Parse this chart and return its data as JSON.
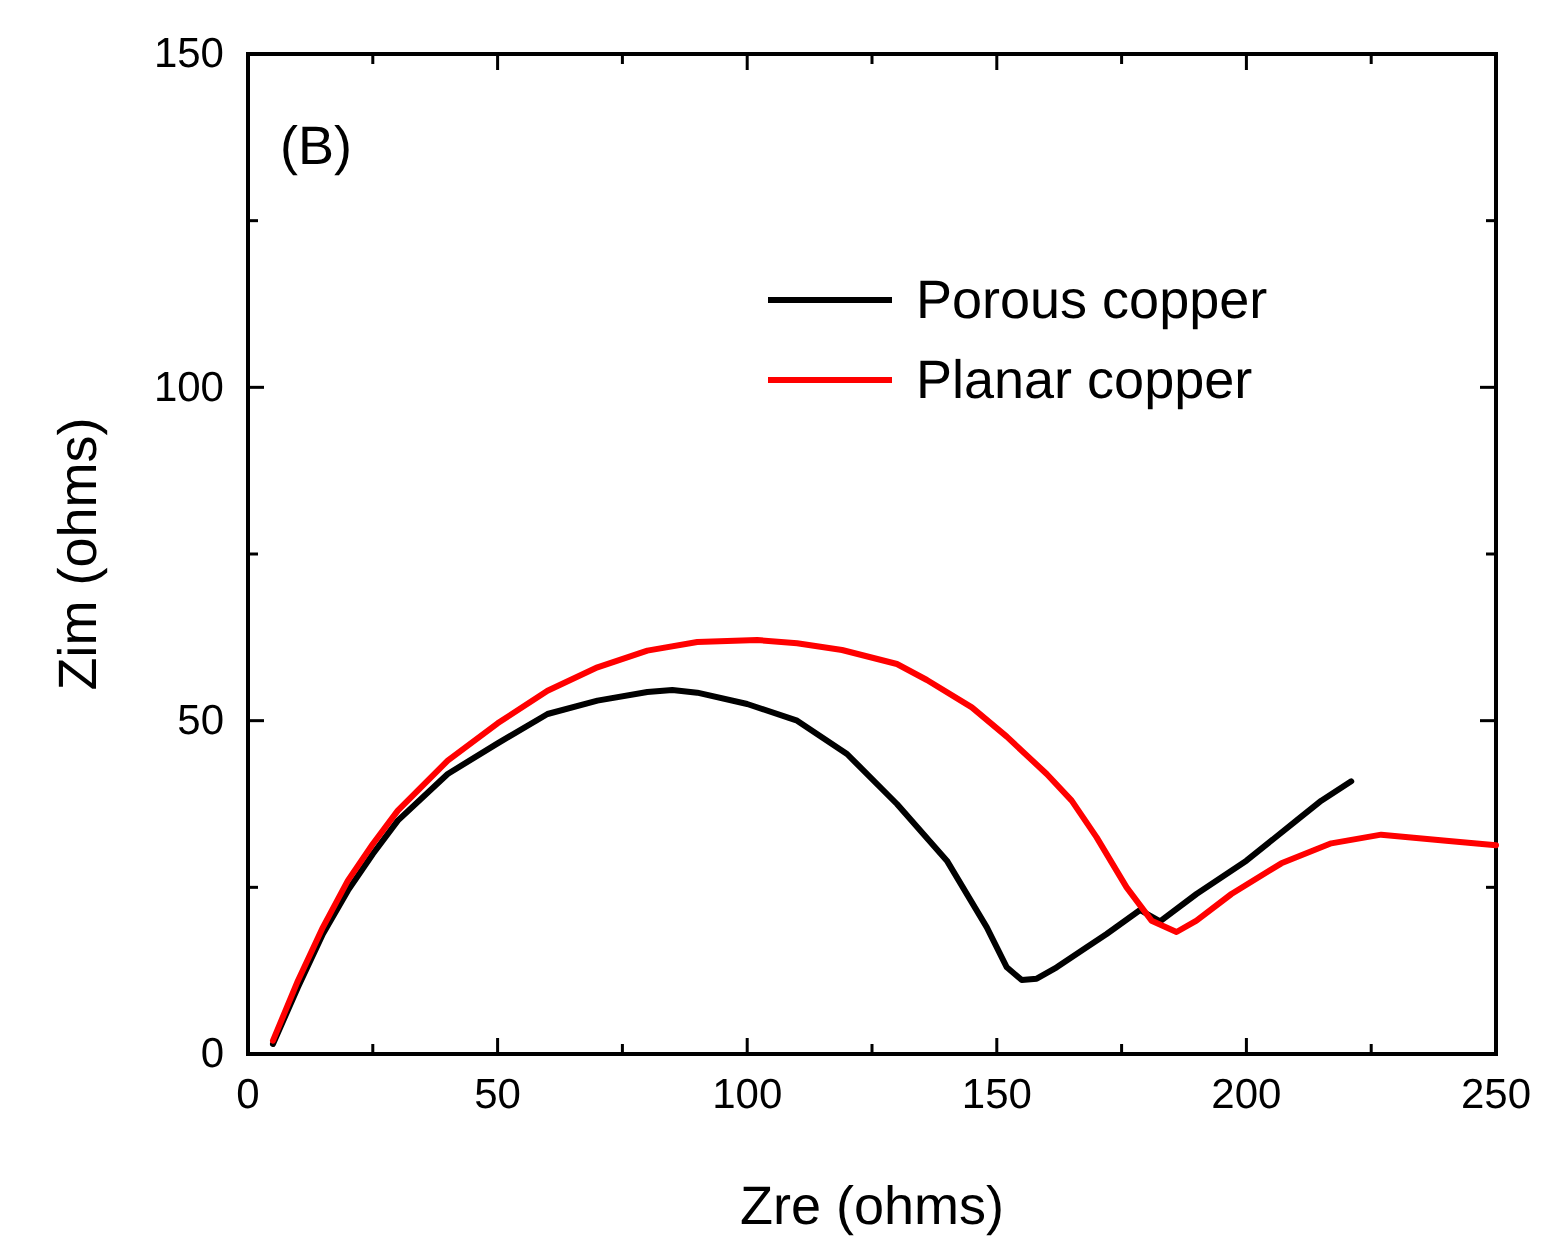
{
  "chart_data": {
    "type": "line",
    "xlabel": "Zre (ohms)",
    "ylabel": "Zim (ohms)",
    "annotations": [
      "(B)"
    ],
    "xlim": [
      0,
      250
    ],
    "ylim": [
      0,
      150
    ],
    "xticks": [
      0,
      {
        "value": 25,
        "label": null
      },
      50,
      {
        "value": 75,
        "label": null
      },
      100,
      {
        "value": 125,
        "label": null
      },
      150,
      {
        "value": 175,
        "label": null
      },
      200,
      {
        "value": 225,
        "label": null
      },
      250
    ],
    "yticks": [
      0,
      {
        "value": 25,
        "label": null
      },
      50,
      {
        "value": 75,
        "label": null
      },
      100,
      {
        "value": 125,
        "label": null
      },
      150
    ],
    "legend": "top right",
    "grid": false,
    "marker": "none",
    "line_style": "solid",
    "series": [
      {
        "name": "Porous copper",
        "color": "#000000",
        "x": [
          5,
          10,
          15,
          20,
          25,
          30,
          40,
          50,
          60,
          70,
          80,
          85,
          90,
          100,
          110,
          120,
          130,
          140,
          148,
          152,
          155,
          158,
          162,
          168,
          172,
          178.7,
          182.7,
          190,
          200,
          210,
          215,
          221
        ],
        "values": [
          1.5,
          10,
          18,
          24.5,
          30,
          35,
          42,
          46.6,
          51,
          53,
          54.3,
          54.6,
          54.2,
          52.5,
          50,
          45,
          37.5,
          29,
          19,
          13,
          11.1,
          11.3,
          13,
          16,
          18,
          21.6,
          19.9,
          24,
          29,
          35,
          38,
          40.9
        ]
      },
      {
        "name": "Planar copper",
        "color": "#ff0000",
        "x": [
          5,
          10,
          15,
          20,
          25,
          30,
          40,
          50,
          60,
          70,
          80,
          90,
          102,
          110,
          119,
          130,
          136,
          145,
          152,
          160,
          165,
          170,
          176,
          181,
          186,
          190,
          197,
          207,
          217,
          227,
          240,
          250
        ],
        "values": [
          2,
          11,
          19,
          26,
          31.5,
          36.5,
          44,
          49.6,
          54.5,
          58,
          60.5,
          61.8,
          62.1,
          61.6,
          60.6,
          58.5,
          56.1,
          52,
          47.6,
          42,
          38,
          32.5,
          25,
          20,
          18.3,
          20,
          24,
          28.6,
          31.6,
          32.9,
          32,
          31.3
        ]
      }
    ]
  }
}
